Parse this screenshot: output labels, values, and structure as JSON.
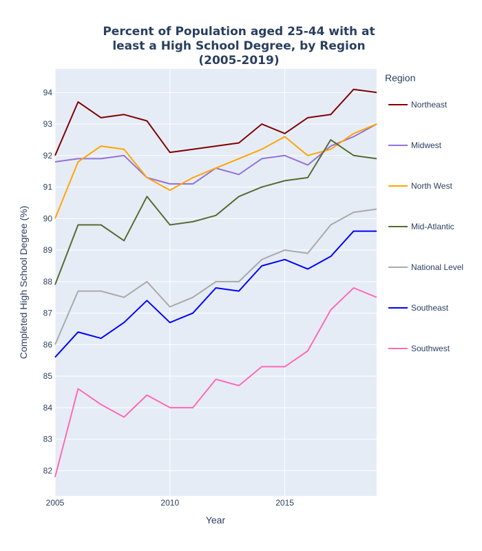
{
  "chart_data": {
    "type": "line",
    "title_lines": [
      "Percent of Population aged 25-44 with at",
      "least a High School Degree, by Region",
      "(2005-2019)"
    ],
    "xlabel": "Year",
    "ylabel": "Completed High School Degree (%)",
    "legend_title": "Region",
    "legend_position": "right",
    "grid": true,
    "background": "#e5ecf6",
    "xlim": [
      2005,
      2019
    ],
    "ylim": [
      81.2,
      94.75
    ],
    "x_ticks": [
      2005,
      2010,
      2015
    ],
    "x_tick_labels": [
      "2005",
      "2010",
      "2015"
    ],
    "y_ticks": [
      82,
      83,
      84,
      85,
      86,
      87,
      88,
      89,
      90,
      91,
      92,
      93,
      94
    ],
    "y_tick_labels": [
      "82",
      "83",
      "84",
      "85",
      "86",
      "87",
      "88",
      "89",
      "90",
      "91",
      "92",
      "93",
      "94"
    ],
    "x": [
      2005,
      2006,
      2007,
      2008,
      2009,
      2010,
      2011,
      2012,
      2013,
      2014,
      2015,
      2016,
      2017,
      2018,
      2019
    ],
    "series": [
      {
        "name": "Northeast",
        "color": "#800000",
        "values": [
          92.0,
          93.7,
          93.2,
          93.3,
          93.1,
          92.1,
          92.2,
          92.3,
          92.4,
          93.0,
          92.7,
          93.2,
          93.3,
          94.1,
          94.0
        ]
      },
      {
        "name": "Midwest",
        "color": "#9370db",
        "values": [
          91.8,
          91.9,
          91.9,
          92.0,
          91.3,
          91.1,
          91.1,
          91.6,
          91.4,
          91.9,
          92.0,
          91.7,
          92.3,
          92.6,
          93.0
        ]
      },
      {
        "name": "North West",
        "color": "#ffa500",
        "values": [
          90.0,
          91.8,
          92.3,
          92.2,
          91.3,
          90.9,
          91.3,
          91.6,
          91.9,
          92.2,
          92.6,
          92.0,
          92.2,
          92.7,
          93.0
        ]
      },
      {
        "name": "Mid-Atlantic",
        "color": "#556b2f",
        "values": [
          87.9,
          89.8,
          89.8,
          89.3,
          90.7,
          89.8,
          89.9,
          90.1,
          90.7,
          91.0,
          91.2,
          91.3,
          92.5,
          92.0,
          91.9
        ]
      },
      {
        "name": "National Level",
        "color": "#a9a9a9",
        "values": [
          86.0,
          87.7,
          87.7,
          87.5,
          88.0,
          87.2,
          87.5,
          88.0,
          88.0,
          88.7,
          89.0,
          88.9,
          89.8,
          90.2,
          90.3
        ]
      },
      {
        "name": "Southeast",
        "color": "#0000ff",
        "values": [
          85.6,
          86.4,
          86.2,
          86.7,
          87.4,
          86.7,
          87.0,
          87.8,
          87.7,
          88.5,
          88.7,
          88.4,
          88.8,
          89.6,
          89.6
        ]
      },
      {
        "name": "Southwest",
        "color": "#ff69b4",
        "values": [
          81.8,
          84.6,
          84.1,
          83.7,
          84.4,
          84.0,
          84.0,
          84.9,
          84.7,
          85.3,
          85.3,
          85.8,
          87.1,
          87.8,
          87.5
        ]
      }
    ]
  }
}
